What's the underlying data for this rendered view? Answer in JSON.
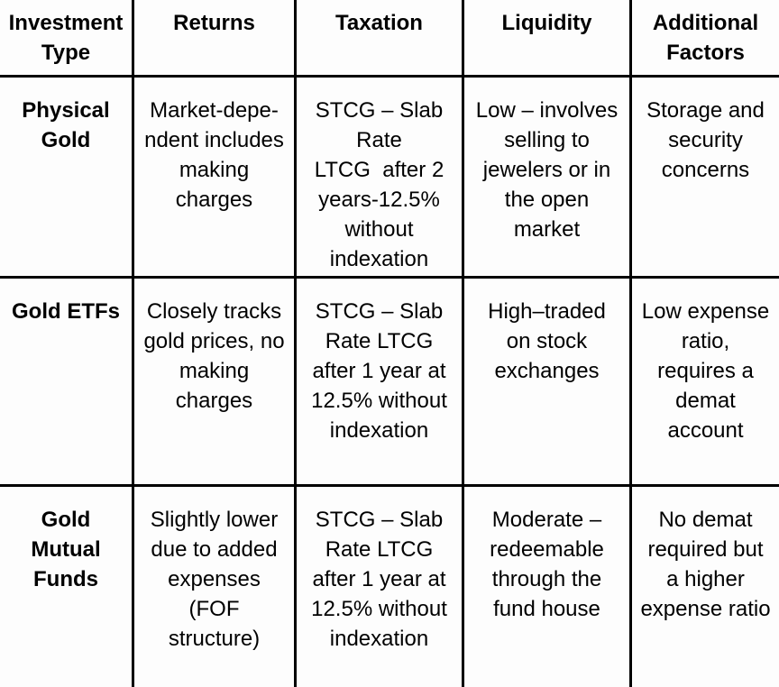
{
  "chart_data": {
    "type": "table",
    "columns": [
      "Investment Type",
      "Returns",
      "Taxation",
      "Liquidity",
      "Additional Factors"
    ],
    "rows": [
      [
        "Physical Gold",
        "Market-depe-ndent includes making charges",
        "STCG – Slab Rate LTCG after 2 years-12.5% without indexation",
        "Low – involves selling to jewelers or in the open market",
        "Storage and security concerns"
      ],
      [
        "Gold ETFs",
        "Closely tracks gold prices, no making charges",
        "STCG – Slab Rate LTCG after 1 year at 12.5% without indexation",
        "High–traded on stock exchanges",
        "Low expense ratio, requires a demat account"
      ],
      [
        "Gold Mutual Funds",
        "Slightly lower due to added expenses (FOF structure)",
        "STCG – Slab Rate LTCG after 1 year at 12.5% without indexation",
        "Moderate – redeemable through the fund house",
        "No demat required but a higher expense ratio"
      ]
    ],
    "layout": {
      "grid": "on",
      "header_bold": true,
      "first_column_bold": true
    }
  },
  "table": {
    "header": [
      "Investment\nType",
      "Returns",
      "Taxation",
      "Liquidity",
      "Additional\nFactors"
    ],
    "rows": [
      {
        "cells": [
          "Physical\nGold",
          "Market-depe-\nndent includes\nmaking\ncharges",
          "STCG – Slab\nRate\nLTCG  after 2\nyears-12.5%\nwithout\nindexation",
          "Low – involves\nselling to\njewelers or in\nthe open\nmarket",
          "Storage and\nsecurity\nconcerns"
        ]
      },
      {
        "cells": [
          "Gold ETFs",
          "Closely tracks\ngold prices, no\nmaking\ncharges",
          "STCG – Slab\nRate LTCG\nafter 1 year at\n12.5% without\nindexation",
          "High–traded\non stock\nexchanges",
          "Low expense\nratio,\nrequires a\ndemat\naccount"
        ]
      },
      {
        "cells": [
          "Gold\nMutual\nFunds",
          "Slightly lower\ndue to added\nexpenses\n(FOF\nstructure)",
          "STCG – Slab\nRate LTCG\nafter 1 year at\n12.5% without\nindexation",
          "Moderate –\nredeemable\nthrough the\nfund house",
          "No demat\nrequired but\na higher\nexpense ratio"
        ]
      }
    ],
    "colors": {
      "border": "#000000",
      "background": "#fdfdfd",
      "text": "#000000"
    }
  }
}
